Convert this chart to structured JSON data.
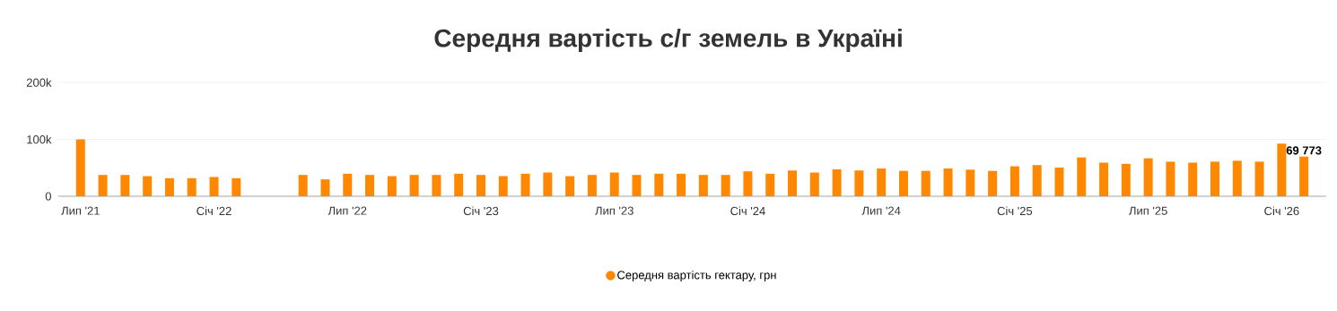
{
  "chart_data": {
    "type": "bar",
    "title": "Середня вартість с/г земель в Україні",
    "categories": [
      "Лип '21",
      null,
      null,
      null,
      null,
      null,
      "Січ '22",
      null,
      null,
      null,
      null,
      null,
      "Лип '22",
      null,
      null,
      null,
      null,
      null,
      "Січ '23",
      null,
      null,
      null,
      null,
      null,
      "Лип '23",
      null,
      null,
      null,
      null,
      null,
      "Січ '24",
      null,
      null,
      null,
      null,
      null,
      "Лип '24",
      null,
      null,
      null,
      null,
      null,
      "Січ '25",
      null,
      null,
      null,
      null,
      null,
      "Лип '25",
      null,
      null,
      null,
      null,
      null,
      "Січ '26",
      null
    ],
    "series": [
      {
        "name": "Середня вартість гектару, грн",
        "color": "#ff8800",
        "values": [
          100000,
          37500,
          37500,
          35400,
          31800,
          31800,
          33900,
          31800,
          null,
          null,
          37500,
          29700,
          39600,
          37500,
          35400,
          37500,
          37500,
          39600,
          37500,
          35400,
          39600,
          41700,
          35400,
          37500,
          41700,
          37500,
          39600,
          39600,
          37500,
          37500,
          43800,
          39600,
          45300,
          41700,
          47400,
          45300,
          48900,
          44600,
          44600,
          48900,
          46800,
          44600,
          52700,
          54800,
          50500,
          68300,
          59100,
          57000,
          66700,
          60800,
          59100,
          60800,
          62400,
          60800,
          92500,
          69773
        ],
        "value_labels": [
          null,
          null,
          null,
          null,
          null,
          null,
          null,
          null,
          null,
          null,
          null,
          null,
          null,
          null,
          null,
          null,
          null,
          null,
          null,
          null,
          null,
          null,
          null,
          null,
          null,
          null,
          null,
          null,
          null,
          null,
          null,
          null,
          null,
          null,
          null,
          null,
          null,
          null,
          null,
          null,
          null,
          null,
          null,
          null,
          null,
          null,
          null,
          null,
          null,
          null,
          null,
          null,
          null,
          null,
          null,
          "69 773"
        ]
      }
    ],
    "ylim": [
      0,
      200000
    ],
    "yticks": [
      {
        "value": 0,
        "label": "0"
      },
      {
        "value": 100000,
        "label": "100k"
      },
      {
        "value": 200000,
        "label": "200k"
      }
    ],
    "grid": "y",
    "legend": "bottom"
  }
}
